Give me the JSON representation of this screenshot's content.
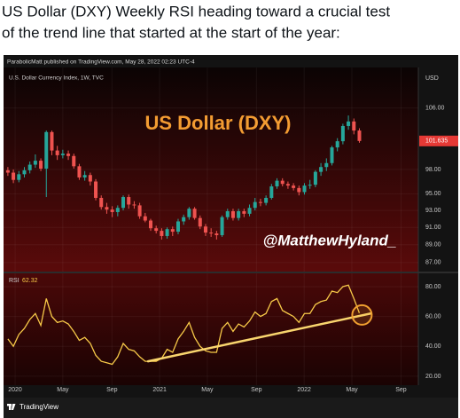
{
  "tweet": {
    "lines": [
      "US Dollar (DXY) Weekly RSI heading toward a crucial test",
      "of the trend line that started at the start of the year:"
    ]
  },
  "chart_data": [
    {
      "type": "candlestick",
      "header": "ParabolicMatt published on TradingView.com, May 28, 2022 02:23 UTC-4",
      "subtitle": "U.S. Dollar Currency Index, 1W, TVC",
      "currency": "USD",
      "watermark": "US Dollar (DXY)",
      "handle": "@MatthewHyland_",
      "up_color": "#26a69a",
      "down_color": "#ef5350",
      "log_scale": true,
      "x": [
        2019.95,
        2019.988,
        2020.026,
        2020.064,
        2020.102,
        2020.14,
        2020.178,
        2020.216,
        2020.254,
        2020.292,
        2020.33,
        2020.368,
        2020.406,
        2020.444,
        2020.482,
        2020.52,
        2020.558,
        2020.596,
        2020.634,
        2020.672,
        2020.71,
        2020.748,
        2020.786,
        2020.824,
        2020.862,
        2020.9,
        2020.938,
        2020.976,
        2021.014,
        2021.052,
        2021.09,
        2021.128,
        2021.166,
        2021.204,
        2021.242,
        2021.28,
        2021.318,
        2021.356,
        2021.394,
        2021.432,
        2021.47,
        2021.508,
        2021.546,
        2021.584,
        2021.622,
        2021.66,
        2021.698,
        2021.736,
        2021.774,
        2021.812,
        2021.85,
        2021.888,
        2021.926,
        2021.964,
        2022.002,
        2022.04,
        2022.078,
        2022.116,
        2022.154,
        2022.192,
        2022.23,
        2022.268,
        2022.306,
        2022.344,
        2022.382
      ],
      "open": [
        97.9,
        97.6,
        96.7,
        97.4,
        97.9,
        98.6,
        99.1,
        98.1,
        102.8,
        100.4,
        99.8,
        100.0,
        99.7,
        98.4,
        97.0,
        97.3,
        96.5,
        94.5,
        93.4,
        93.1,
        92.8,
        93.3,
        94.6,
        93.7,
        93.6,
        92.3,
        91.8,
        90.9,
        90.6,
        90.0,
        90.8,
        90.5,
        91.7,
        92.2,
        93.2,
        92.1,
        91.1,
        90.4,
        90.3,
        90.1,
        92.2,
        92.9,
        92.1,
        92.9,
        92.6,
        93.3,
        94.0,
        93.9,
        94.5,
        95.9,
        96.6,
        96.2,
        96.0,
        95.7,
        95.2,
        96.0,
        96.1,
        97.7,
        98.3,
        98.8,
        100.8,
        101.6,
        103.6,
        104.2,
        103.0
      ],
      "high": [
        98.3,
        98.0,
        97.8,
        98.3,
        99.0,
        99.9,
        99.4,
        103.0,
        103.0,
        101.0,
        100.5,
        100.4,
        100.0,
        98.7,
        97.8,
        97.6,
        96.8,
        94.8,
        93.9,
        93.5,
        93.6,
        94.8,
        94.9,
        94.1,
        93.9,
        92.7,
        92.0,
        91.2,
        90.9,
        91.0,
        91.1,
        92.0,
        92.5,
        93.4,
        93.4,
        92.4,
        91.4,
        90.9,
        90.6,
        92.4,
        93.2,
        93.2,
        93.2,
        93.2,
        93.7,
        94.5,
        94.4,
        94.8,
        96.2,
        96.9,
        96.9,
        96.5,
        96.3,
        96.0,
        96.3,
        96.7,
        97.9,
        98.8,
        99.4,
        101.0,
        102.0,
        103.9,
        105.0,
        104.6,
        103.3
      ],
      "low": [
        97.2,
        96.3,
        96.4,
        97.0,
        97.5,
        98.2,
        97.8,
        94.6,
        99.8,
        99.2,
        99.4,
        99.2,
        98.1,
        96.7,
        96.6,
        96.0,
        94.2,
        93.1,
        92.6,
        92.2,
        92.3,
        93.0,
        93.2,
        93.2,
        92.0,
        91.6,
        90.6,
        90.3,
        89.6,
        89.7,
        90.0,
        90.2,
        91.3,
        91.9,
        91.9,
        90.8,
        90.0,
        89.9,
        89.6,
        89.9,
        91.9,
        91.8,
        91.8,
        92.2,
        92.3,
        93.0,
        93.5,
        93.6,
        94.3,
        95.6,
        95.9,
        95.6,
        95.4,
        94.8,
        94.9,
        95.6,
        95.8,
        97.2,
        97.8,
        98.5,
        100.3,
        101.2,
        103.1,
        102.5,
        101.4
      ],
      "close": [
        97.6,
        96.7,
        97.4,
        97.9,
        98.6,
        99.1,
        98.1,
        102.8,
        100.4,
        99.8,
        100.0,
        99.7,
        98.4,
        97.0,
        97.3,
        96.5,
        94.5,
        93.4,
        93.1,
        92.8,
        93.3,
        94.6,
        93.7,
        93.6,
        92.3,
        91.8,
        90.9,
        90.6,
        90.0,
        90.8,
        90.5,
        91.7,
        92.2,
        93.2,
        92.1,
        91.1,
        90.4,
        90.3,
        90.1,
        92.2,
        92.9,
        92.1,
        92.9,
        92.6,
        93.3,
        94.0,
        93.9,
        94.5,
        95.9,
        96.6,
        96.2,
        96.0,
        95.7,
        95.2,
        96.0,
        96.1,
        97.7,
        98.3,
        98.8,
        100.8,
        101.6,
        103.6,
        104.2,
        103.0,
        101.635
      ],
      "ylim": [
        86.1,
        111.4
      ],
      "yticks": [
        {
          "value": 87,
          "label": "87.00"
        },
        {
          "value": 89,
          "label": "89.00"
        },
        {
          "value": 91,
          "label": "91.00"
        },
        {
          "value": 93,
          "label": "93.00"
        },
        {
          "value": 95,
          "label": "95.00"
        },
        {
          "value": 98,
          "label": "98.00"
        },
        {
          "value": 106,
          "label": "106.00"
        }
      ]
    },
    {
      "type": "line",
      "label": "RSI",
      "color": "#f7c948",
      "values": [
        45,
        40,
        48,
        52,
        58,
        62,
        54,
        72,
        60,
        56,
        57,
        55,
        50,
        44,
        46,
        42,
        34,
        30,
        29,
        28,
        33,
        42,
        38,
        37,
        33,
        30,
        30,
        30,
        32,
        38,
        36,
        45,
        50,
        56,
        46,
        40,
        37,
        36,
        36,
        52,
        56,
        50,
        55,
        53,
        57,
        63,
        60,
        62,
        70,
        72,
        64,
        62,
        60,
        56,
        62,
        62,
        68,
        70,
        71,
        77,
        76,
        80,
        81,
        72,
        62.32
      ],
      "ylim": [
        15.2,
        87.7
      ],
      "yticks": [
        {
          "value": 20,
          "label": "20.00"
        },
        {
          "value": 40,
          "label": "40.00"
        },
        {
          "value": 60,
          "label": "60.00"
        },
        {
          "value": 80,
          "label": "80.00"
        }
      ],
      "xlim": [
        2019.92,
        2022.79
      ],
      "xticks": [
        {
          "value": 2020,
          "label": "2020"
        },
        {
          "value": 2020.33,
          "label": "May"
        },
        {
          "value": 2020.67,
          "label": "Sep"
        },
        {
          "value": 2021,
          "label": "2021"
        },
        {
          "value": 2021.33,
          "label": "May"
        },
        {
          "value": 2021.67,
          "label": "Sep"
        },
        {
          "value": 2022,
          "label": "2022"
        },
        {
          "value": 2022.33,
          "label": "May"
        },
        {
          "value": 2022.67,
          "label": "Sep"
        }
      ],
      "trendline": {
        "x": [
          2020.92,
          2022.46
        ],
        "y": [
          30,
          62
        ],
        "color": "#f9d56e"
      },
      "highlight": {
        "x": 2022.4,
        "y": 61,
        "color": "#f0a030"
      }
    }
  ],
  "footer": {
    "brand": "TradingView"
  }
}
